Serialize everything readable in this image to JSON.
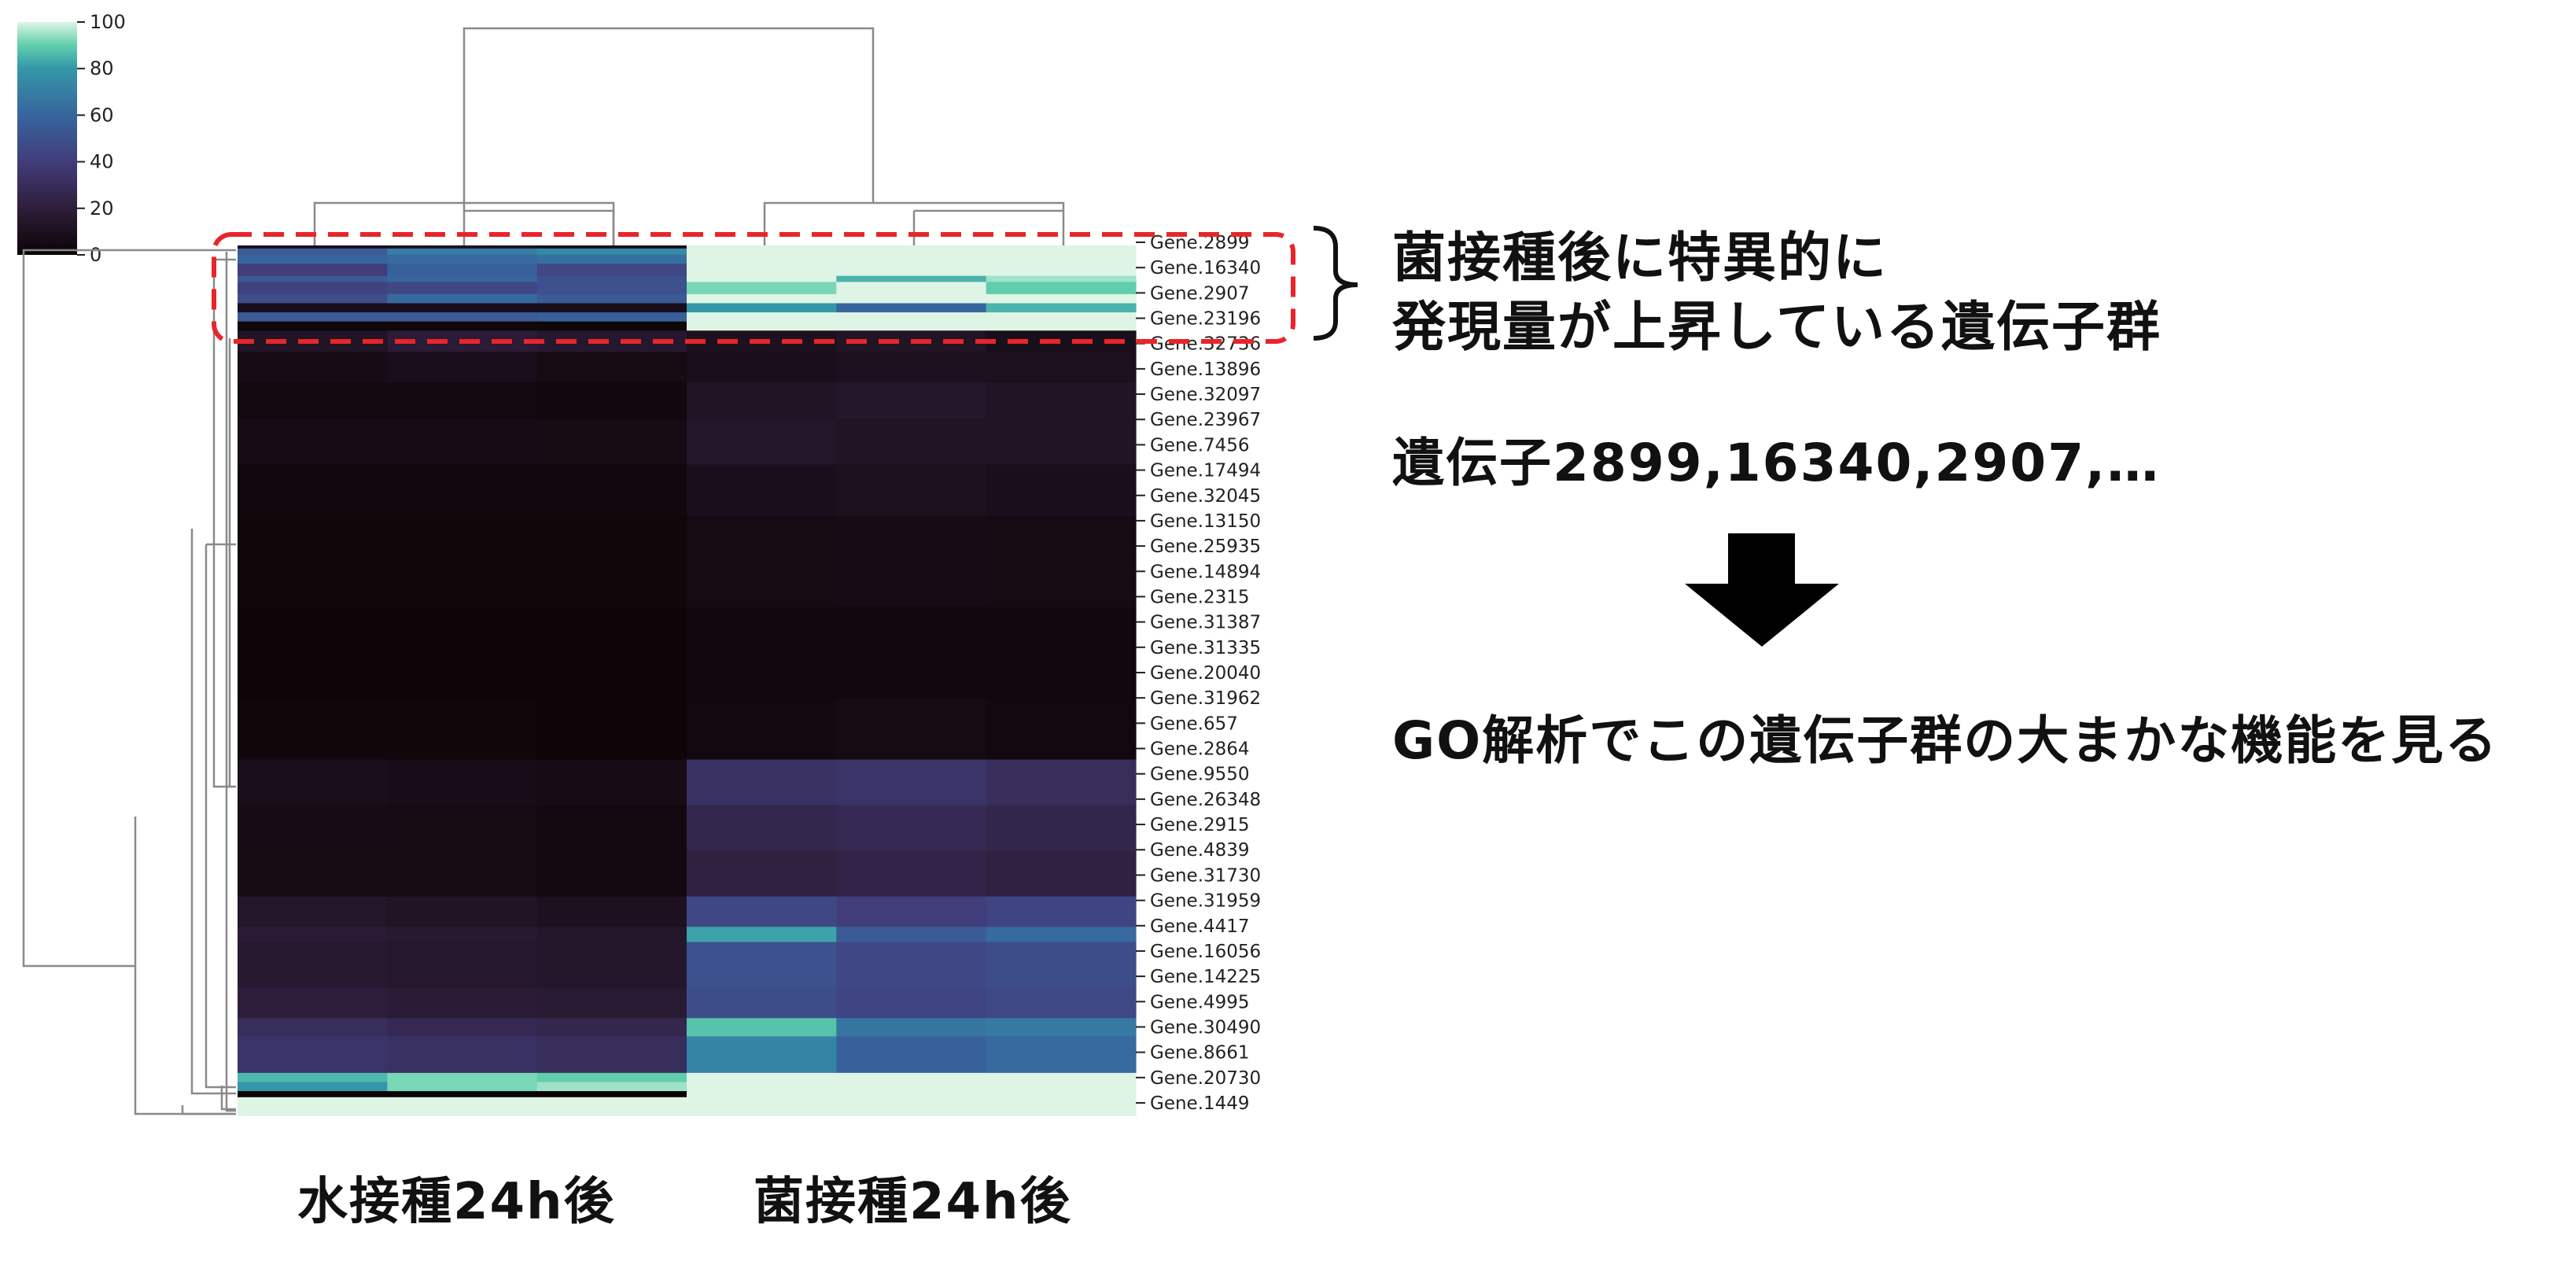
{
  "chart_data": {
    "type": "heatmap",
    "colormap": "mako",
    "colors": {
      "c0": "#0b0405",
      "c20": "#2e1e3b",
      "c40": "#413d7b",
      "c60": "#37659e",
      "c80": "#3497a9",
      "c90": "#60ceac",
      "c100": "#def5e5"
    },
    "colorbar": {
      "ticks": [
        0,
        20,
        40,
        60,
        80,
        100
      ],
      "range": [
        0,
        100
      ]
    },
    "row_labels": [
      "Gene.2899",
      "Gene.16340",
      "Gene.2907",
      "Gene.23196",
      "Gene.32736",
      "Gene.13896",
      "Gene.32097",
      "Gene.23967",
      "Gene.7456",
      "Gene.17494",
      "Gene.32045",
      "Gene.13150",
      "Gene.25935",
      "Gene.14894",
      "Gene.2315",
      "Gene.31387",
      "Gene.31335",
      "Gene.20040",
      "Gene.31962",
      "Gene.657",
      "Gene.2864",
      "Gene.9550",
      "Gene.26348",
      "Gene.2915",
      "Gene.4839",
      "Gene.31730",
      "Gene.31959",
      "Gene.4417",
      "Gene.16056",
      "Gene.14225",
      "Gene.4995",
      "Gene.30490",
      "Gene.8661",
      "Gene.20730",
      "Gene.1449"
    ],
    "groups": [
      "水接種24h後",
      "菌接種24h後"
    ],
    "columns": 6,
    "row_blocks": [
      {
        "rows": 2,
        "values": [
          8,
          10,
          8,
          100,
          100,
          100
        ]
      },
      {
        "rows": 4,
        "values": [
          55,
          70,
          75,
          100,
          100,
          100
        ]
      },
      {
        "rows": 6,
        "values": [
          60,
          62,
          65,
          100,
          100,
          100
        ]
      },
      {
        "rows": 8,
        "values": [
          40,
          58,
          45,
          100,
          100,
          100
        ]
      },
      {
        "rows": 4,
        "values": [
          55,
          60,
          50,
          100,
          85,
          95
        ]
      },
      {
        "rows": 8,
        "values": [
          42,
          45,
          50,
          92,
          100,
          90
        ]
      },
      {
        "rows": 6,
        "values": [
          48,
          62,
          55,
          100,
          100,
          100
        ]
      },
      {
        "rows": 6,
        "values": [
          8,
          8,
          8,
          80,
          60,
          85
        ]
      },
      {
        "rows": 6,
        "values": [
          55,
          55,
          58,
          100,
          100,
          100
        ]
      },
      {
        "rows": 6,
        "values": [
          2,
          2,
          2,
          100,
          100,
          100
        ]
      },
      {
        "rows": 14,
        "values": [
          12,
          18,
          15,
          10,
          12,
          8
        ]
      },
      {
        "rows": 20,
        "values": [
          6,
          8,
          5,
          8,
          10,
          9
        ]
      },
      {
        "rows": 24,
        "values": [
          4,
          4,
          3,
          12,
          14,
          12
        ]
      },
      {
        "rows": 30,
        "values": [
          6,
          6,
          5,
          14,
          12,
          12
        ]
      },
      {
        "rows": 34,
        "values": [
          3,
          3,
          3,
          8,
          10,
          8
        ]
      },
      {
        "rows": 60,
        "values": [
          2,
          2,
          2,
          5,
          6,
          5
        ]
      },
      {
        "rows": 60,
        "values": [
          1,
          1,
          1,
          3,
          3,
          3
        ]
      },
      {
        "rows": 40,
        "values": [
          2,
          2,
          1,
          4,
          5,
          4
        ]
      },
      {
        "rows": 30,
        "values": [
          8,
          7,
          6,
          32,
          34,
          30
        ]
      },
      {
        "rows": 30,
        "values": [
          6,
          5,
          4,
          26,
          28,
          25
        ]
      },
      {
        "rows": 30,
        "values": [
          5,
          5,
          4,
          22,
          24,
          22
        ]
      },
      {
        "rows": 20,
        "values": [
          14,
          12,
          10,
          45,
          40,
          44
        ]
      },
      {
        "rows": 10,
        "values": [
          18,
          16,
          14,
          82,
          55,
          62
        ]
      },
      {
        "rows": 30,
        "values": [
          16,
          15,
          14,
          50,
          45,
          48
        ]
      },
      {
        "rows": 20,
        "values": [
          20,
          18,
          17,
          48,
          44,
          46
        ]
      },
      {
        "rows": 12,
        "values": [
          30,
          28,
          26,
          88,
          66,
          68
        ]
      },
      {
        "rows": 24,
        "values": [
          34,
          32,
          30,
          72,
          58,
          62
        ]
      },
      {
        "rows": 6,
        "values": [
          86,
          92,
          90,
          100,
          100,
          100
        ]
      },
      {
        "rows": 6,
        "values": [
          80,
          92,
          95,
          100,
          100,
          100
        ]
      },
      {
        "rows": 4,
        "values": [
          0,
          0,
          0,
          100,
          100,
          100
        ]
      },
      {
        "rows": 12,
        "values": [
          100,
          100,
          100,
          100,
          100,
          100
        ]
      }
    ]
  },
  "annotations": {
    "highlight_line1": "菌接種後に特異的に",
    "highlight_line2": "発現量が上昇している遺伝子群",
    "gene_list": "遺伝子2899,16340,2907,…",
    "go_text": "GO解析でこの遺伝子群の大まかな機能を見る"
  },
  "column_labels": {
    "water": "水接種24h後",
    "fungus": "菌接種24h後"
  },
  "highlight": {
    "box_color": "#e8252a",
    "arrow_color": "#000000"
  }
}
